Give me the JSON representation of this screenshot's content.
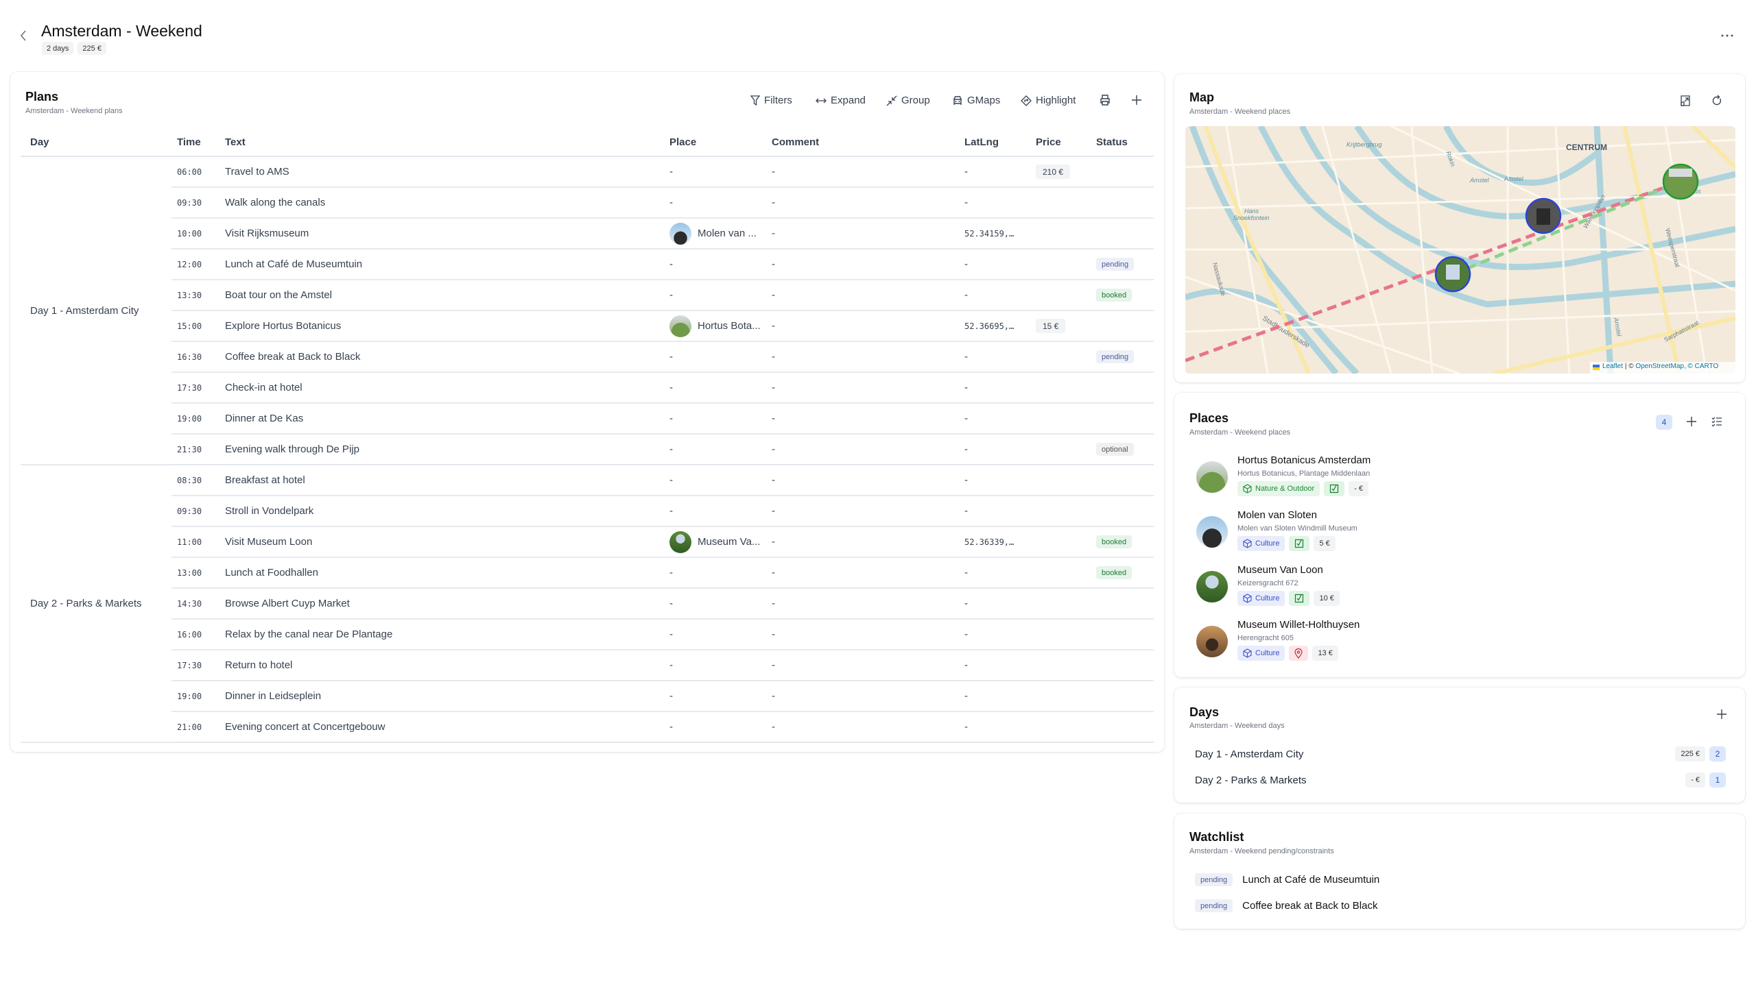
{
  "header": {
    "title": "Amsterdam - Weekend",
    "badges": [
      "2 days",
      "225 €"
    ]
  },
  "plans": {
    "title": "Plans",
    "subtitle": "Amsterdam - Weekend plans",
    "toolbar": {
      "filters": "Filters",
      "expand": "Expand",
      "group": "Group",
      "gmaps": "GMaps",
      "highlight": "Highlight"
    },
    "columns": [
      "Day",
      "Time",
      "Text",
      "Place",
      "Comment",
      "LatLng",
      "Price",
      "Status"
    ],
    "days": [
      {
        "label": "Day 1 - Amsterdam City",
        "rows": [
          {
            "time": "06:00",
            "text": "Travel to AMS",
            "place": "-",
            "comment": "-",
            "latlng": "-",
            "price": "210 €",
            "status": ""
          },
          {
            "time": "09:30",
            "text": "Walk along the canals",
            "place": "-",
            "comment": "-",
            "latlng": "-",
            "price": "",
            "status": ""
          },
          {
            "time": "10:00",
            "text": "Visit Rijksmuseum",
            "place": "Molen van ...",
            "place_img": "windmill",
            "comment": "-",
            "latlng": "52.34159,…",
            "price": "",
            "status": ""
          },
          {
            "time": "12:00",
            "text": "Lunch at Café de Museumtuin",
            "place": "-",
            "comment": "-",
            "latlng": "-",
            "price": "",
            "status": "pending"
          },
          {
            "time": "13:30",
            "text": "Boat tour on the Amstel",
            "place": "-",
            "comment": "-",
            "latlng": "-",
            "price": "",
            "status": "booked"
          },
          {
            "time": "15:00",
            "text": "Explore Hortus Botanicus",
            "place": "Hortus Bota...",
            "place_img": "garden",
            "comment": "-",
            "latlng": "52.36695,…",
            "price": "15 €",
            "status": ""
          },
          {
            "time": "16:30",
            "text": "Coffee break at Back to Black",
            "place": "-",
            "comment": "-",
            "latlng": "-",
            "price": "",
            "status": "pending"
          },
          {
            "time": "17:30",
            "text": "Check-in at hotel",
            "place": "-",
            "comment": "-",
            "latlng": "-",
            "price": "",
            "status": ""
          },
          {
            "time": "19:00",
            "text": "Dinner at De Kas",
            "place": "-",
            "comment": "-",
            "latlng": "-",
            "price": "",
            "status": ""
          },
          {
            "time": "21:30",
            "text": "Evening walk through De Pijp",
            "place": "-",
            "comment": "-",
            "latlng": "-",
            "price": "",
            "status": "optional"
          }
        ]
      },
      {
        "label": "Day 2 - Parks & Markets",
        "rows": [
          {
            "time": "08:30",
            "text": "Breakfast at hotel",
            "place": "-",
            "comment": "-",
            "latlng": "-",
            "price": "",
            "status": ""
          },
          {
            "time": "09:30",
            "text": "Stroll in Vondelpark",
            "place": "-",
            "comment": "-",
            "latlng": "-",
            "price": "",
            "status": ""
          },
          {
            "time": "11:00",
            "text": "Visit Museum Loon",
            "place": "Museum Va...",
            "place_img": "museum",
            "comment": "-",
            "latlng": "52.36339,…",
            "price": "",
            "status": "booked"
          },
          {
            "time": "13:00",
            "text": "Lunch at Foodhallen",
            "place": "-",
            "comment": "-",
            "latlng": "-",
            "price": "",
            "status": "booked"
          },
          {
            "time": "14:30",
            "text": "Browse Albert Cuyp Market",
            "place": "-",
            "comment": "-",
            "latlng": "-",
            "price": "",
            "status": ""
          },
          {
            "time": "16:00",
            "text": "Relax by the canal near De Plantage",
            "place": "-",
            "comment": "-",
            "latlng": "-",
            "price": "",
            "status": ""
          },
          {
            "time": "17:30",
            "text": "Return to hotel",
            "place": "-",
            "comment": "-",
            "latlng": "-",
            "price": "",
            "status": ""
          },
          {
            "time": "19:00",
            "text": "Dinner in Leidseplein",
            "place": "-",
            "comment": "-",
            "latlng": "-",
            "price": "",
            "status": ""
          },
          {
            "time": "21:00",
            "text": "Evening concert at Concertgebouw",
            "place": "-",
            "comment": "-",
            "latlng": "-",
            "price": "",
            "status": ""
          }
        ]
      }
    ]
  },
  "map": {
    "title": "Map",
    "subtitle": "Amsterdam - Weekend places",
    "labels": [
      "Krijtbergbrug",
      "CENTRUM",
      "Amstel",
      "Amstel",
      "Rokin",
      "Waterlooplein",
      "Nassaukade",
      "Hans",
      "Snoekfontein",
      "Stadhouderskade",
      "Weesperstraat",
      "Sarphatistraat",
      "Amstel",
      "Hortus"
    ],
    "attribution": {
      "leaflet": "Leaflet",
      "sep": "| ©",
      "osm": "OpenStreetMap",
      "carto": ", © CARTO"
    },
    "colors": {
      "route_red": "#e8748a",
      "route_green": "#8fd18f",
      "marker_blue": "#2b45d6",
      "marker_green": "#1d9a3a"
    }
  },
  "places": {
    "title": "Places",
    "subtitle": "Amsterdam - Weekend places",
    "count": "4",
    "items": [
      {
        "name": "Hortus Botanicus Amsterdam",
        "address": "Hortus Botanicus, Plantage Middenlaan",
        "category": "Nature & Outdoor",
        "category_style": "nature",
        "state": "visited",
        "price": "- €",
        "img": "garden"
      },
      {
        "name": "Molen van Sloten",
        "address": "Molen van Sloten Windmill Museum",
        "category": "Culture",
        "category_style": "culture",
        "state": "visited",
        "price": "5 €",
        "img": "windmill"
      },
      {
        "name": "Museum Van Loon",
        "address": "Keizersgracht 672",
        "category": "Culture",
        "category_style": "culture",
        "state": "visited",
        "price": "10 €",
        "img": "museum"
      },
      {
        "name": "Museum Willet-Holthuysen",
        "address": "Herengracht 605",
        "category": "Culture",
        "category_style": "culture",
        "state": "pinned",
        "price": "13 €",
        "img": "interior"
      }
    ]
  },
  "days": {
    "title": "Days",
    "subtitle": "Amsterdam - Weekend days",
    "items": [
      {
        "label": "Day 1 - Amsterdam City",
        "price": "225 €",
        "count": "2"
      },
      {
        "label": "Day 2 - Parks & Markets",
        "price": "- €",
        "count": "1"
      }
    ]
  },
  "watchlist": {
    "title": "Watchlist",
    "subtitle": "Amsterdam - Weekend pending/constraints",
    "items": [
      {
        "status": "pending",
        "text": "Lunch at Café de Museumtuin"
      },
      {
        "status": "pending",
        "text": "Coffee break at Back to Black"
      }
    ]
  }
}
